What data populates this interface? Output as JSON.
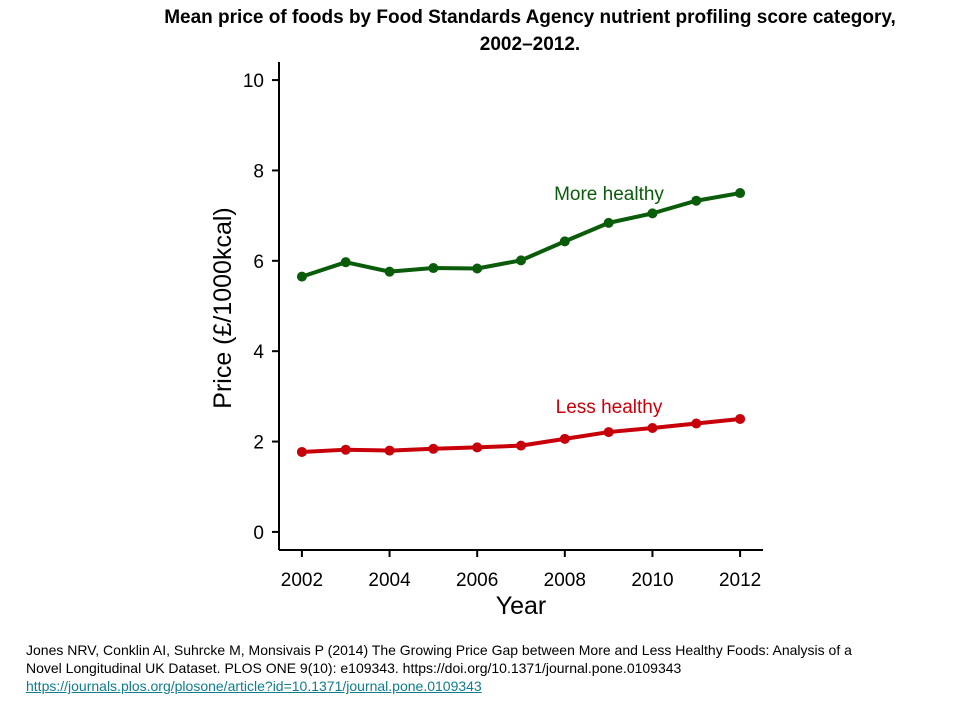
{
  "title_line1": "Mean price of foods by Food Standards Agency nutrient profiling score category,",
  "title_line2": "2002–2012.",
  "caption": {
    "line1": "Jones NRV, Conklin AI, Suhrcke M, Monsivais P (2014) The Growing Price Gap between More and Less Healthy Foods: Analysis of a",
    "line2": "Novel Longitudinal UK Dataset. PLOS ONE 9(10): e109343. https://doi.org/10.1371/journal.pone.0109343",
    "link": "https://journals.plos.org/plosone/article?id=10.1371/journal.pone.0109343"
  },
  "chart_data": {
    "type": "line",
    "title": "Mean price of foods by Food Standards Agency nutrient profiling score category, 2002–2012.",
    "xlabel": "Year",
    "ylabel": "Price (£/1000kcal)",
    "x": [
      2002,
      2003,
      2004,
      2005,
      2006,
      2007,
      2008,
      2009,
      2010,
      2011,
      2012
    ],
    "xticks": [
      2002,
      2004,
      2006,
      2008,
      2010,
      2012
    ],
    "yticks": [
      0,
      2,
      4,
      6,
      8,
      10
    ],
    "xlim": [
      2001.5,
      2012.5
    ],
    "ylim": [
      -0.4,
      10.4
    ],
    "grid": false,
    "series": [
      {
        "name": "More healthy",
        "color": "#0a5c0a",
        "values": [
          5.65,
          5.97,
          5.76,
          5.84,
          5.83,
          6.01,
          6.43,
          6.84,
          7.05,
          7.33,
          7.5
        ]
      },
      {
        "name": "Less healthy",
        "color": "#c8000a",
        "values": [
          1.77,
          1.82,
          1.8,
          1.84,
          1.87,
          1.91,
          2.06,
          2.21,
          2.3,
          2.4,
          2.5
        ]
      }
    ]
  }
}
